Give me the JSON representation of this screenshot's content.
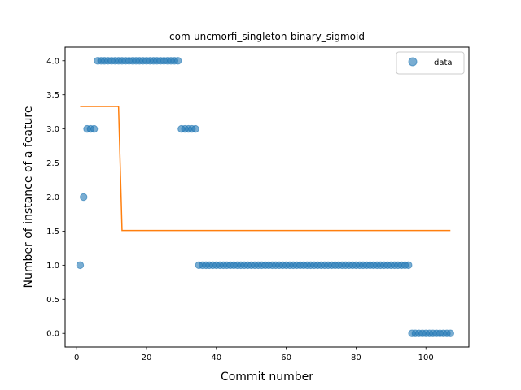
{
  "chart_data": {
    "type": "scatter",
    "title": "com-uncmorfi_singleton-binary_sigmoid",
    "xlabel": "Commit number",
    "ylabel": "Number of instance of a feature",
    "xlim": [
      -3.3,
      112.3
    ],
    "ylim": [
      -0.2,
      4.2
    ],
    "xticks": [
      0,
      20,
      40,
      60,
      80,
      100
    ],
    "yticks": [
      0.0,
      0.5,
      1.0,
      1.5,
      2.0,
      2.5,
      3.0,
      3.5,
      4.0
    ],
    "xtick_labels": [
      "0",
      "20",
      "40",
      "60",
      "80",
      "100"
    ],
    "ytick_labels": [
      "0.0",
      "0.5",
      "1.0",
      "1.5",
      "2.0",
      "2.5",
      "3.0",
      "3.5",
      "4.0"
    ],
    "legend": {
      "position": "top-right",
      "entries": [
        "data"
      ]
    },
    "colors": {
      "data": "#1f77b4",
      "fit": "#ff7f0e"
    },
    "series": [
      {
        "name": "data",
        "kind": "scatter",
        "segments": [
          {
            "x_start": 1,
            "x_end": 1,
            "y": 1
          },
          {
            "x_start": 2,
            "x_end": 2,
            "y": 2
          },
          {
            "x_start": 3,
            "x_end": 5,
            "y": 3
          },
          {
            "x_start": 6,
            "x_end": 29,
            "y": 4
          },
          {
            "x_start": 30,
            "x_end": 34,
            "y": 3
          },
          {
            "x_start": 35,
            "x_end": 95,
            "y": 1
          },
          {
            "x_start": 96,
            "x_end": 107,
            "y": 0
          }
        ]
      },
      {
        "kind": "line",
        "x": [
          1,
          12,
          13,
          107
        ],
        "y": [
          3.33,
          3.33,
          1.51,
          1.51
        ]
      }
    ]
  }
}
